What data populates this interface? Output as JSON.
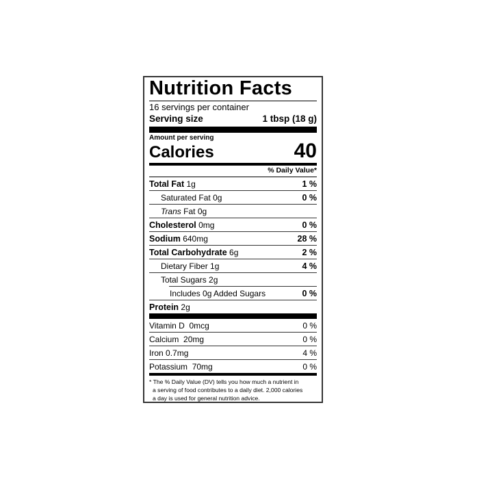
{
  "title": "Nutrition Facts",
  "servings_per_container": "16 servings per container",
  "serving_size": {
    "label": "Serving size",
    "value": "1 tbsp (18 g)"
  },
  "amount_per_serving": "Amount per serving",
  "calories": {
    "label": "Calories",
    "value": "40"
  },
  "daily_value_header": "% Daily Value*",
  "nutrients": [
    {
      "name": "Total Fat",
      "amount": "1g",
      "dv": "1 %"
    },
    {
      "name": "Saturated Fat",
      "amount": "0g",
      "dv": "0 %"
    },
    {
      "name_italic": "Trans",
      "name": "Fat",
      "amount": "0g",
      "dv": ""
    },
    {
      "name": "Cholesterol",
      "amount": "0mg",
      "dv": "0 %"
    },
    {
      "name": "Sodium",
      "amount": "640mg",
      "dv": "28 %"
    },
    {
      "name": "Total Carbohydrate",
      "amount": "6g",
      "dv": "2 %"
    },
    {
      "name": "Dietary Fiber",
      "amount": "1g",
      "dv": "4 %"
    },
    {
      "name": "Total Sugars",
      "amount": "2g",
      "dv": ""
    },
    {
      "name": "Includes 0g Added Sugars",
      "amount": "",
      "dv": "0 %"
    },
    {
      "name": "Protein",
      "amount": "2g",
      "dv": ""
    }
  ],
  "vitamins": [
    {
      "name": "Vitamin D",
      "amount": "0mcg",
      "dv": "0 %"
    },
    {
      "name": "Calcium",
      "amount": "20mg",
      "dv": "0 %"
    },
    {
      "name": "Iron",
      "amount": "0.7mg",
      "dv": "4 %"
    },
    {
      "name": "Potassium",
      "amount": "70mg",
      "dv": "0 %"
    }
  ],
  "footnote": [
    "* The % Daily Value (DV) tells you how much a nutrient in",
    "a serving of food contributes to a daily diet. 2,000 calories",
    "a day is used for general nutrition advice."
  ]
}
